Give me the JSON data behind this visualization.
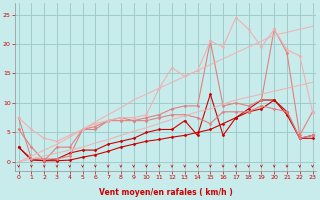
{
  "xlabel": "Vent moyen/en rafales ( km/h )",
  "bg_color": "#c8ecec",
  "grid_color": "#a0cccc",
  "text_color": "#cc0000",
  "x_values": [
    0,
    1,
    2,
    3,
    4,
    5,
    6,
    7,
    8,
    9,
    10,
    11,
    12,
    13,
    14,
    15,
    16,
    17,
    18,
    19,
    20,
    21,
    22,
    23
  ],
  "lines": [
    {
      "y": [
        2.5,
        0.5,
        0.2,
        0.2,
        0.3,
        0.8,
        1.2,
        1.8,
        2.5,
        3.0,
        3.5,
        3.8,
        4.2,
        4.5,
        5.0,
        5.5,
        6.5,
        7.5,
        8.5,
        9.0,
        10.5,
        8.0,
        4.0,
        4.0
      ],
      "color": "#cc0000",
      "lw": 0.8,
      "marker": "D",
      "ms": 1.5,
      "alpha": 1.0
    },
    {
      "y": [
        2.5,
        0.3,
        0.2,
        0.5,
        1.5,
        2.0,
        2.0,
        3.0,
        3.5,
        4.0,
        5.0,
        5.5,
        5.5,
        7.0,
        4.5,
        11.5,
        4.5,
        7.5,
        9.0,
        10.5,
        10.5,
        8.5,
        4.0,
        4.5
      ],
      "color": "#cc0000",
      "lw": 0.8,
      "marker": "D",
      "ms": 1.5,
      "alpha": 1.0
    },
    {
      "y": [
        7.5,
        0.5,
        0.5,
        0.5,
        1.0,
        5.5,
        5.5,
        7.0,
        7.0,
        7.0,
        7.0,
        7.5,
        8.0,
        8.0,
        7.5,
        6.5,
        8.5,
        8.5,
        8.5,
        9.5,
        9.0,
        8.5,
        4.0,
        4.5
      ],
      "color": "#e08080",
      "lw": 0.8,
      "marker": "D",
      "ms": 1.5,
      "alpha": 1.0
    },
    {
      "y": [
        5.5,
        2.5,
        0.2,
        2.5,
        2.5,
        5.5,
        6.0,
        7.0,
        7.5,
        7.0,
        7.5,
        8.0,
        9.0,
        9.5,
        9.5,
        20.5,
        9.5,
        10.0,
        9.5,
        10.5,
        22.5,
        18.5,
        4.5,
        8.5
      ],
      "color": "#e08080",
      "lw": 0.8,
      "marker": "D",
      "ms": 1.5,
      "alpha": 1.0
    },
    {
      "y": [
        7.5,
        5.5,
        4.0,
        3.5,
        4.5,
        5.5,
        6.5,
        7.0,
        7.5,
        7.5,
        8.0,
        12.5,
        16.0,
        14.5,
        15.5,
        20.5,
        19.5,
        24.5,
        22.5,
        19.5,
        22.5,
        19.0,
        18.0,
        8.5
      ],
      "color": "#f0b0b0",
      "lw": 0.8,
      "marker": "D",
      "ms": 1.5,
      "alpha": 1.0
    },
    {
      "y": [
        0.0,
        0.5,
        1.0,
        1.5,
        2.0,
        2.5,
        3.2,
        3.8,
        4.5,
        5.2,
        5.8,
        6.5,
        7.2,
        7.8,
        8.5,
        9.0,
        9.8,
        10.5,
        11.0,
        11.5,
        12.0,
        12.5,
        13.0,
        13.5
      ],
      "color": "#f0b0b0",
      "lw": 0.8,
      "marker": null,
      "ms": 0,
      "alpha": 0.9
    },
    {
      "y": [
        0.0,
        1.0,
        2.0,
        3.0,
        4.2,
        5.5,
        6.8,
        8.0,
        9.2,
        10.5,
        11.5,
        12.5,
        13.5,
        14.5,
        15.5,
        16.5,
        17.5,
        18.5,
        19.5,
        20.5,
        21.5,
        22.0,
        22.5,
        23.0
      ],
      "color": "#f0b0b0",
      "lw": 0.8,
      "marker": null,
      "ms": 0,
      "alpha": 0.9
    }
  ],
  "xlim": [
    -0.3,
    23.3
  ],
  "ylim": [
    -1.5,
    27
  ],
  "yticks": [
    0,
    5,
    10,
    15,
    20,
    25
  ],
  "xticks": [
    0,
    1,
    2,
    3,
    4,
    5,
    6,
    7,
    8,
    9,
    10,
    11,
    12,
    13,
    14,
    15,
    16,
    17,
    18,
    19,
    20,
    21,
    22,
    23
  ]
}
